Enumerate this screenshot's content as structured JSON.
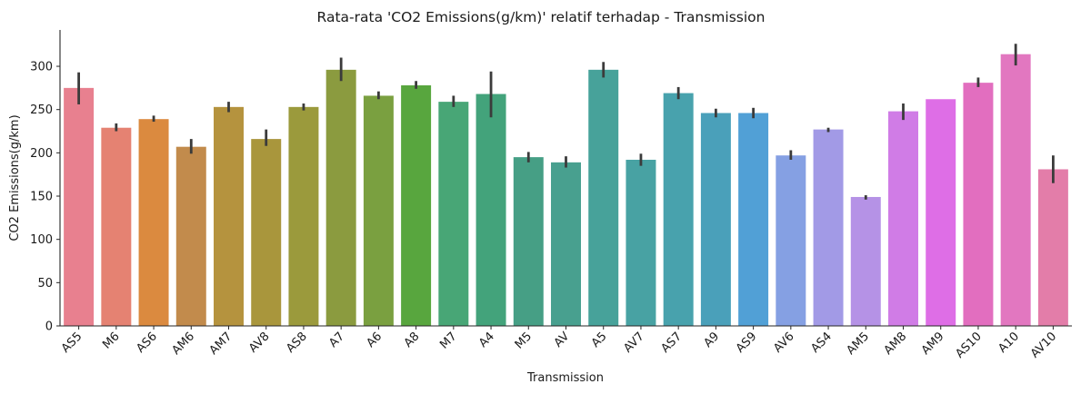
{
  "chart_data": {
    "type": "bar",
    "title": "Rata-rata 'CO2 Emissions(g/km)' relatif terhadap - Transmission",
    "xlabel": "Transmission",
    "ylabel": "CO2 Emissions(g/km)",
    "ylim": [
      0,
      342
    ],
    "yticks": [
      0,
      50,
      100,
      150,
      200,
      250,
      300
    ],
    "grid": false,
    "legend": "none",
    "categories": [
      "AS5",
      "M6",
      "AS6",
      "AM6",
      "AM7",
      "AV8",
      "AS8",
      "A7",
      "A6",
      "A8",
      "M7",
      "A4",
      "M5",
      "AV",
      "A5",
      "AV7",
      "AS7",
      "A9",
      "AS9",
      "AV6",
      "AS4",
      "AM5",
      "AM8",
      "AM9",
      "AS10",
      "A10",
      "AV10"
    ],
    "values": [
      275,
      229,
      239,
      207,
      253,
      216,
      253,
      296,
      266,
      278,
      259,
      268,
      195,
      189,
      296,
      192,
      269,
      246,
      246,
      197,
      227,
      149,
      248,
      262,
      281,
      314,
      181
    ],
    "error_low": [
      256,
      225,
      236,
      199,
      247,
      208,
      249,
      283,
      262,
      274,
      253,
      241,
      189,
      183,
      287,
      185,
      262,
      241,
      240,
      192,
      224,
      146,
      238,
      262,
      276,
      301,
      165
    ],
    "error_high": [
      293,
      234,
      243,
      216,
      259,
      227,
      257,
      310,
      271,
      283,
      266,
      294,
      201,
      196,
      305,
      199,
      276,
      251,
      252,
      203,
      229,
      151,
      257,
      262,
      287,
      326,
      197
    ],
    "colors": [
      "#e8808f",
      "#e58272",
      "#db8a3f",
      "#c28b4c",
      "#b5933e",
      "#a9963c",
      "#9b9a3c",
      "#8b9b3f",
      "#7aa040",
      "#58a63e",
      "#48a676",
      "#43a37b",
      "#469f85",
      "#48a08f",
      "#47a29a",
      "#48a2a3",
      "#48a2ad",
      "#4aa0ba",
      "#51a0d6",
      "#85a0e3",
      "#a29ae6",
      "#b592e6",
      "#d07ce6",
      "#de6ee6",
      "#e26ebf",
      "#e277c0",
      "#e37da9"
    ]
  }
}
